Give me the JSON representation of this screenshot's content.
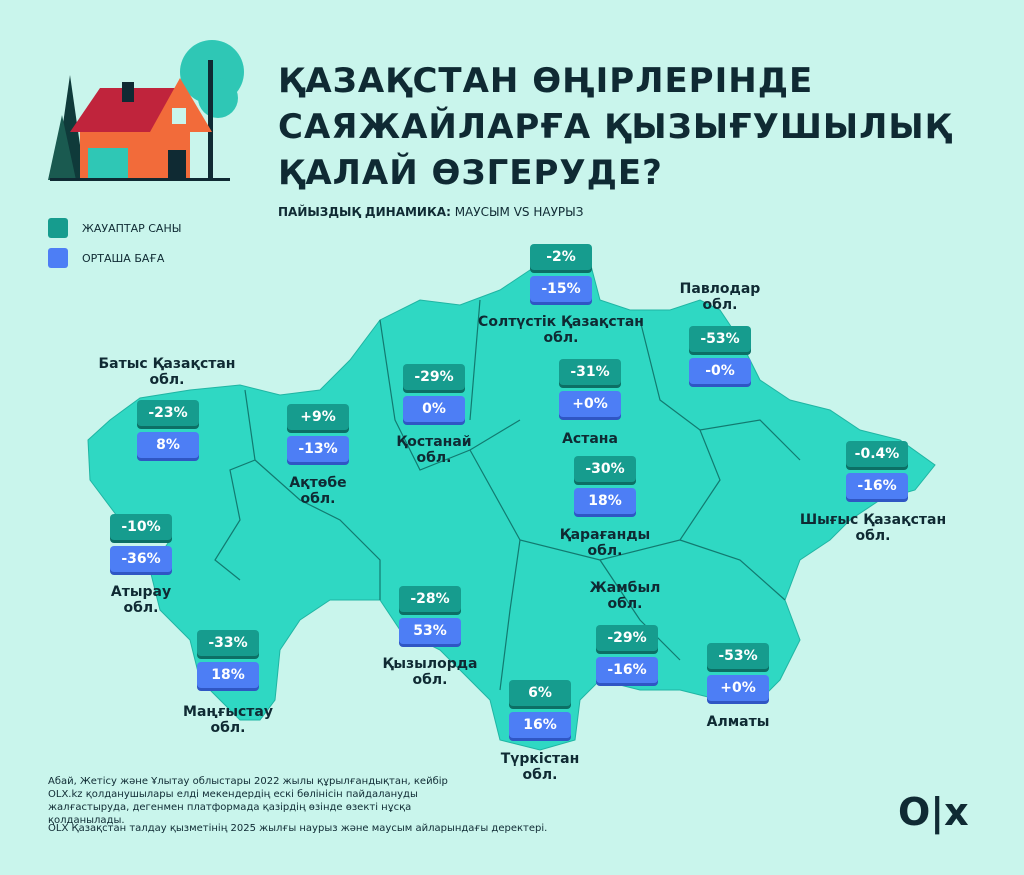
{
  "header": {
    "title": [
      "ҚАЗАҚСТАН ӨҢІРЛЕРІНДЕ",
      "САЯЖАЙЛАРҒА ҚЫЗЫҒУШЫЛЫҚ",
      "ҚАЛАЙ ӨЗГЕРУДЕ?"
    ],
    "subtitle": {
      "bold": "ПАЙЫЗДЫҚ ДИНАМИКА:",
      "rest": " МАУСЫМ VS НАУРЫЗ"
    }
  },
  "legend": [
    "ЖАУАПТАР САНЫ",
    "ОРТАША БАҒА"
  ],
  "regions": [
    {
      "label": [
        "Батыс Қазақстан",
        "обл."
      ],
      "responses": "-23%",
      "price": "8%"
    },
    {
      "label": [
        "Атырау",
        "обл."
      ],
      "responses": "-10%",
      "price": "-36%"
    },
    {
      "label": [
        "Маңғыстау",
        "обл."
      ],
      "responses": "-33%",
      "price": "18%"
    },
    {
      "label": [
        "Ақтөбе",
        "обл."
      ],
      "responses": "+9%",
      "price": "-13%"
    },
    {
      "label": [
        "Қостанай",
        "обл."
      ],
      "responses": "-29%",
      "price": "0%"
    },
    {
      "label": [
        "Солтүстік Қазақстан",
        "обл."
      ],
      "responses": "-2%",
      "price": "-15%"
    },
    {
      "label": [
        "Астана"
      ],
      "responses": "-31%",
      "price": "+0%"
    },
    {
      "label": [
        "Павлодар",
        "обл."
      ],
      "responses": "-53%",
      "price": "-0%"
    },
    {
      "label": [
        "Қарағанды",
        "обл."
      ],
      "responses": "-30%",
      "price": "18%"
    },
    {
      "label": [
        "Шығыс Қазақстан",
        "обл."
      ],
      "responses": "-0.4%",
      "price": "-16%"
    },
    {
      "label": [
        "Қызылорда",
        "обл."
      ],
      "responses": "-28%",
      "price": "53%"
    },
    {
      "label": [
        "Жамбыл",
        "обл."
      ],
      "responses": "-29%",
      "price": "-16%"
    },
    {
      "label": [
        "Түркістан",
        "обл."
      ],
      "responses": "6%",
      "price": "16%"
    },
    {
      "label": [
        "Алматы"
      ],
      "responses": "-53%",
      "price": "+0%"
    }
  ],
  "footnotes": [
    "Абай, Жетісу және Ұлытау облыстары 2022 жылы құрылғандықтан, кейбір OLX.kz қолданушылары елді мекендердің ескі бөлінісін пайдалануды жалғастыруда, дегенмен платформада қазірдің өзінде өзекті нұсқа қолданылады.",
    "OLX Қазақстан талдау қызметінің 2025 жылғы наурыз және маусым айларындағы деректері."
  ],
  "logo": "O|x"
}
